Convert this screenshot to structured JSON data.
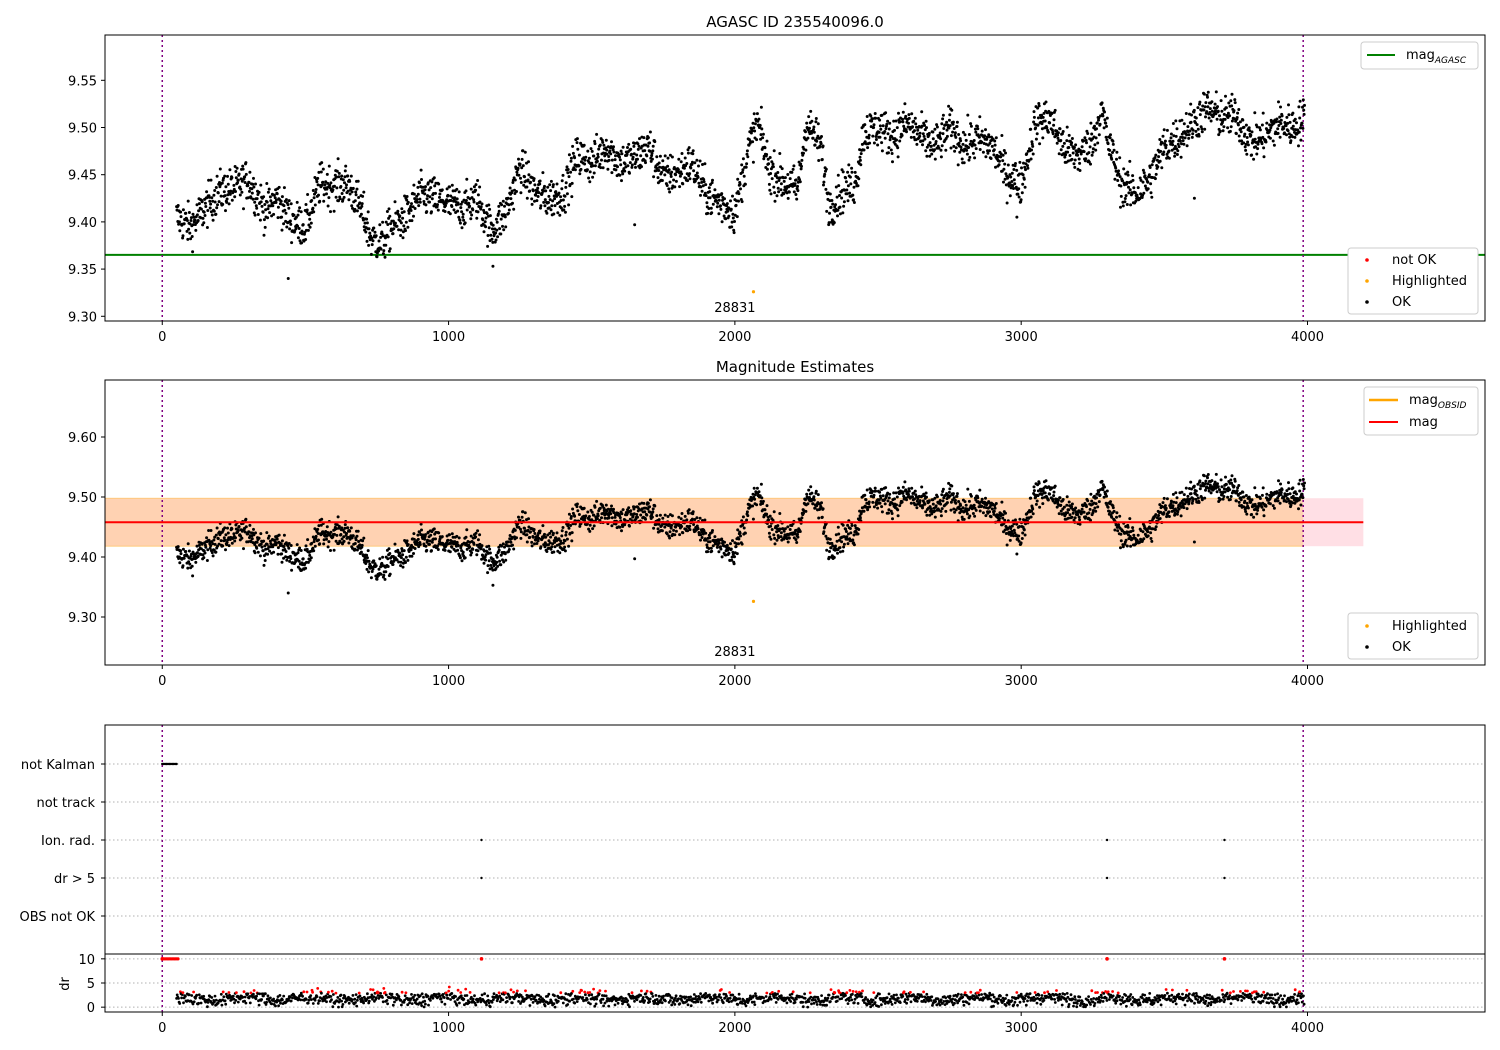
{
  "chart_data": [
    {
      "type": "scatter",
      "title": "AGASC ID 235540096.0",
      "xlim": [
        -200,
        4620
      ],
      "ylim": [
        9.295,
        9.598
      ],
      "xticks": [
        0,
        1000,
        2000,
        3000,
        4000
      ],
      "yticks": [
        9.3,
        9.35,
        9.4,
        9.45,
        9.5,
        9.55
      ],
      "grid": false,
      "mag_agasc": 9.365,
      "obs_boundaries": [
        0,
        3985
      ],
      "annotation": {
        "text": "28831",
        "x": 2000
      },
      "legends": [
        {
          "placement": "top-right",
          "entries": [
            {
              "label": "mag",
              "sub": "AGASC",
              "color": "#008000",
              "kind": "line"
            }
          ]
        },
        {
          "placement": "lower-right",
          "entries": [
            {
              "label": "not OK",
              "color": "#ff0000",
              "kind": "dot"
            },
            {
              "label": "Highlighted",
              "color": "#ffa500",
              "kind": "dot"
            },
            {
              "label": "OK",
              "color": "#000000",
              "kind": "dot"
            }
          ]
        }
      ],
      "highlighted_point": {
        "x": 2065,
        "y": 9.326
      },
      "outliers": [
        {
          "x": 440,
          "y": 9.34
        },
        {
          "x": 1155,
          "y": 9.353
        },
        {
          "x": 2985,
          "y": 9.405
        },
        {
          "x": 3605,
          "y": 9.425
        },
        {
          "x": 1650,
          "y": 9.397
        }
      ],
      "trend": [
        [
          50,
          9.405
        ],
        [
          100,
          9.395
        ],
        [
          150,
          9.415
        ],
        [
          200,
          9.432
        ],
        [
          250,
          9.435
        ],
        [
          300,
          9.445
        ],
        [
          330,
          9.428
        ],
        [
          360,
          9.412
        ],
        [
          400,
          9.425
        ],
        [
          450,
          9.402
        ],
        [
          500,
          9.395
        ],
        [
          550,
          9.44
        ],
        [
          600,
          9.438
        ],
        [
          650,
          9.44
        ],
        [
          700,
          9.41
        ],
        [
          730,
          9.382
        ],
        [
          770,
          9.378
        ],
        [
          800,
          9.395
        ],
        [
          850,
          9.405
        ],
        [
          900,
          9.428
        ],
        [
          950,
          9.425
        ],
        [
          1000,
          9.42
        ],
        [
          1050,
          9.415
        ],
        [
          1100,
          9.425
        ],
        [
          1150,
          9.39
        ],
        [
          1200,
          9.41
        ],
        [
          1250,
          9.458
        ],
        [
          1300,
          9.432
        ],
        [
          1350,
          9.425
        ],
        [
          1400,
          9.43
        ],
        [
          1450,
          9.47
        ],
        [
          1500,
          9.462
        ],
        [
          1550,
          9.48
        ],
        [
          1600,
          9.462
        ],
        [
          1650,
          9.468
        ],
        [
          1700,
          9.48
        ],
        [
          1750,
          9.448
        ],
        [
          1800,
          9.452
        ],
        [
          1850,
          9.462
        ],
        [
          1900,
          9.43
        ],
        [
          1950,
          9.42
        ],
        [
          2000,
          9.41
        ],
        [
          2050,
          9.48
        ],
        [
          2080,
          9.505
        ],
        [
          2120,
          9.455
        ],
        [
          2180,
          9.44
        ],
        [
          2220,
          9.435
        ],
        [
          2250,
          9.505
        ],
        [
          2300,
          9.48
        ],
        [
          2330,
          9.415
        ],
        [
          2380,
          9.435
        ],
        [
          2420,
          9.44
        ],
        [
          2450,
          9.495
        ],
        [
          2500,
          9.5
        ],
        [
          2550,
          9.49
        ],
        [
          2600,
          9.505
        ],
        [
          2650,
          9.49
        ],
        [
          2700,
          9.48
        ],
        [
          2750,
          9.5
        ],
        [
          2800,
          9.48
        ],
        [
          2850,
          9.488
        ],
        [
          2900,
          9.48
        ],
        [
          2950,
          9.45
        ],
        [
          3000,
          9.44
        ],
        [
          3050,
          9.505
        ],
        [
          3100,
          9.51
        ],
        [
          3150,
          9.478
        ],
        [
          3200,
          9.47
        ],
        [
          3250,
          9.485
        ],
        [
          3280,
          9.52
        ],
        [
          3300,
          9.49
        ],
        [
          3350,
          9.44
        ],
        [
          3400,
          9.43
        ],
        [
          3450,
          9.445
        ],
        [
          3500,
          9.48
        ],
        [
          3550,
          9.49
        ],
        [
          3600,
          9.505
        ],
        [
          3650,
          9.52
        ],
        [
          3700,
          9.51
        ],
        [
          3750,
          9.512
        ],
        [
          3800,
          9.485
        ],
        [
          3850,
          9.49
        ],
        [
          3900,
          9.505
        ],
        [
          3950,
          9.5
        ],
        [
          3990,
          9.51
        ]
      ]
    },
    {
      "type": "scatter",
      "title": "Magnitude Estimates",
      "xlim": [
        -200,
        4620
      ],
      "ylim": [
        9.22,
        9.695
      ],
      "xticks": [
        0,
        1000,
        2000,
        3000,
        4000
      ],
      "yticks": [
        9.3,
        9.4,
        9.5,
        9.6
      ],
      "grid": false,
      "mag": 9.458,
      "band_outer": [
        9.418,
        9.498
      ],
      "band_inner": [
        9.418,
        9.498
      ],
      "band_x_end": 4195,
      "obs_boundaries": [
        0,
        3985
      ],
      "annotation": {
        "text": "28831",
        "x": 2000
      },
      "legends": [
        {
          "placement": "top-right",
          "entries": [
            {
              "label": "mag",
              "sub": "OBSID",
              "color": "#ffa500",
              "kind": "line"
            },
            {
              "label": "mag",
              "sub": "",
              "color": "#ff0000",
              "kind": "line"
            }
          ]
        },
        {
          "placement": "lower-right",
          "entries": [
            {
              "label": "Highlighted",
              "color": "#ffa500",
              "kind": "dot"
            },
            {
              "label": "OK",
              "color": "#000000",
              "kind": "dot"
            }
          ]
        }
      ],
      "highlighted_point": {
        "x": 2065,
        "y": 9.326
      }
    },
    {
      "type": "scatter",
      "title": "",
      "xlim": [
        -200,
        4620
      ],
      "xticks": [
        0,
        1000,
        2000,
        3000,
        4000
      ],
      "flag_rows": [
        "not Kalman",
        "not track",
        "Ion. rad.",
        "dr > 5",
        "OBS not OK"
      ],
      "flag_points": [
        {
          "row": "not Kalman",
          "x": [
            0,
            5,
            10,
            15,
            20,
            25,
            30,
            35,
            40,
            45,
            50
          ]
        },
        {
          "row": "Ion. rad.",
          "x": [
            1115,
            3300,
            3710
          ]
        },
        {
          "row": "dr > 5",
          "x": [
            1115,
            3300,
            3710
          ]
        }
      ],
      "dr": {
        "ylabel": "dr",
        "yticks": [
          0,
          5,
          10
        ],
        "ylim": [
          -1,
          11
        ],
        "high_points": [
          {
            "x": 0,
            "y": 10
          },
          {
            "x": 1115,
            "y": 10
          },
          {
            "x": 3300,
            "y": 10
          },
          {
            "x": 3710,
            "y": 10
          }
        ],
        "baseline_mean": 1.8
      },
      "obs_boundaries": [
        0,
        3985
      ]
    }
  ]
}
